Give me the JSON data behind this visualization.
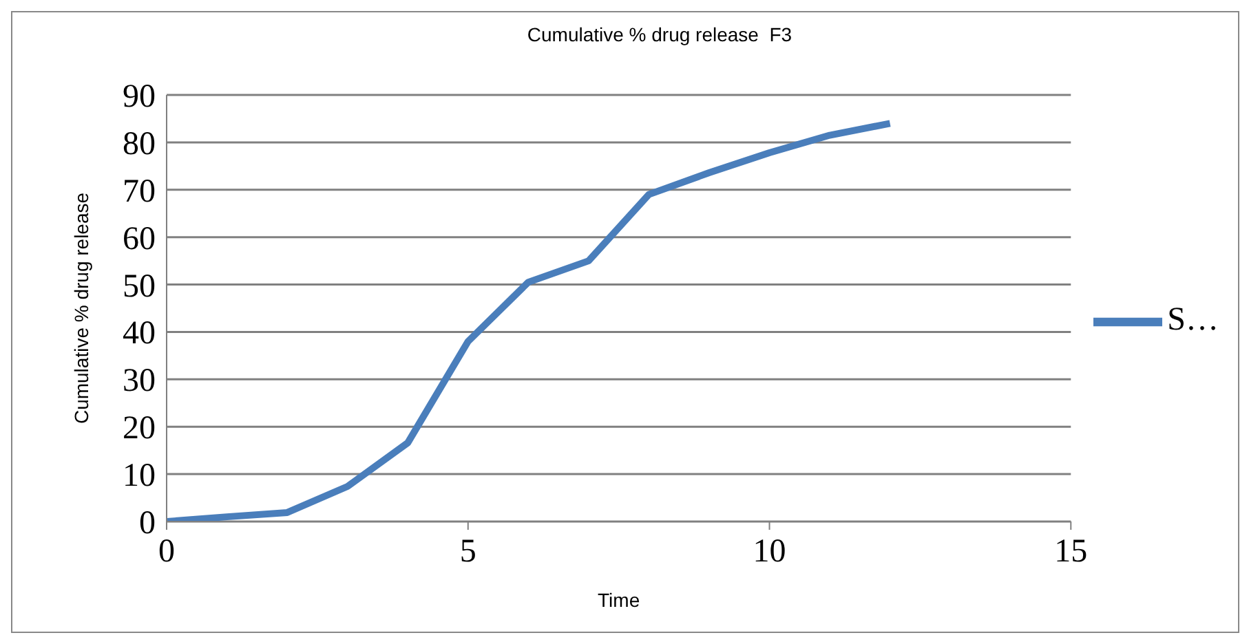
{
  "chart_data": {
    "type": "line",
    "title": "Cumulative % drug release  F3",
    "xlabel": "Time",
    "ylabel": "Cumulative % drug release",
    "x": [
      0,
      1,
      2,
      3,
      4,
      5,
      6,
      7,
      8,
      9,
      10,
      11,
      12
    ],
    "series": [
      {
        "name": "S…",
        "color": "#4a7ebb",
        "values": [
          0,
          1,
          1.9,
          7.4,
          16.6,
          38,
          50.5,
          55,
          69,
          73.6,
          77.8,
          81.5,
          84
        ]
      }
    ],
    "xlim": [
      0,
      15
    ],
    "xticks": [
      0,
      5,
      10,
      15
    ],
    "ylim": [
      0,
      90
    ],
    "yticks": [
      0,
      10,
      20,
      30,
      40,
      50,
      60,
      70,
      80,
      90
    ],
    "grid": "y",
    "legend": "right",
    "marker": "none",
    "line_style": "solid"
  }
}
